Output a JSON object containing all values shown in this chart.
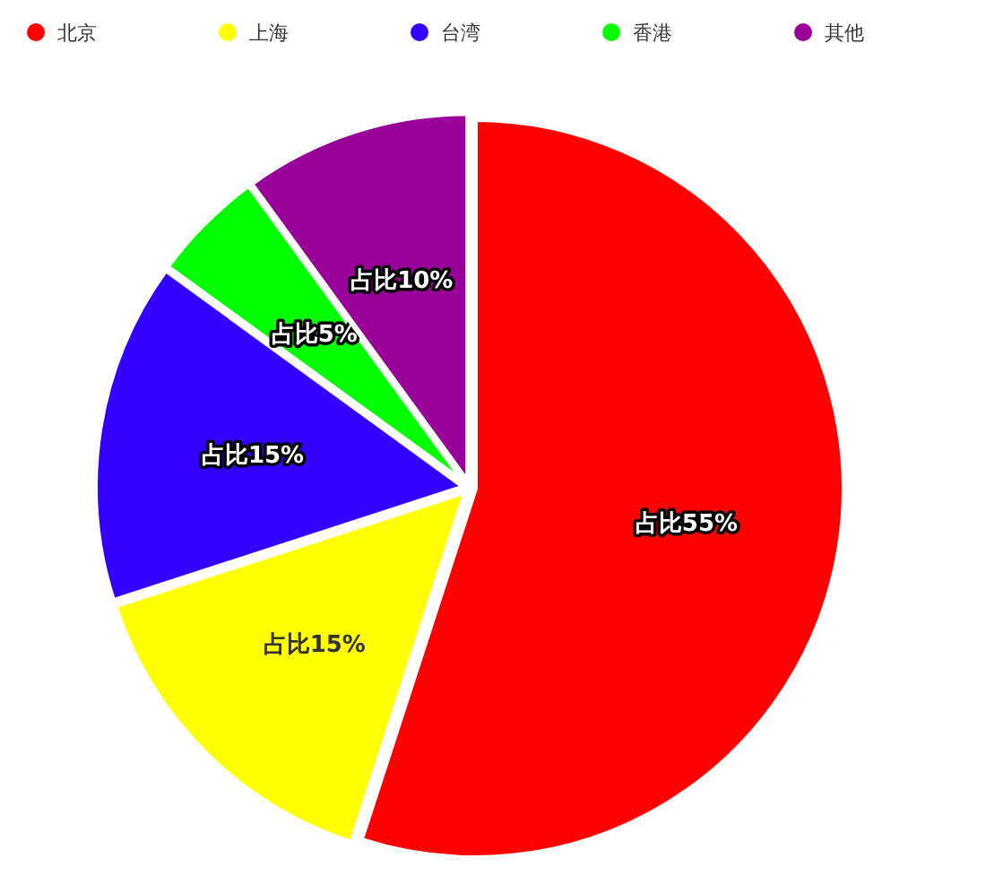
{
  "chart_data": {
    "type": "pie",
    "categories": [
      "北京",
      "上海",
      "台湾",
      "香港",
      "其他"
    ],
    "values": [
      55,
      15,
      15,
      5,
      10
    ],
    "colors": [
      "#ff0000",
      "#ffff00",
      "#3300ff",
      "#00ff00",
      "#990099"
    ],
    "value_labels": [
      "占比55%",
      "占比15%",
      "占比15%",
      "占比5%",
      "占比10%"
    ],
    "legend": "top"
  }
}
